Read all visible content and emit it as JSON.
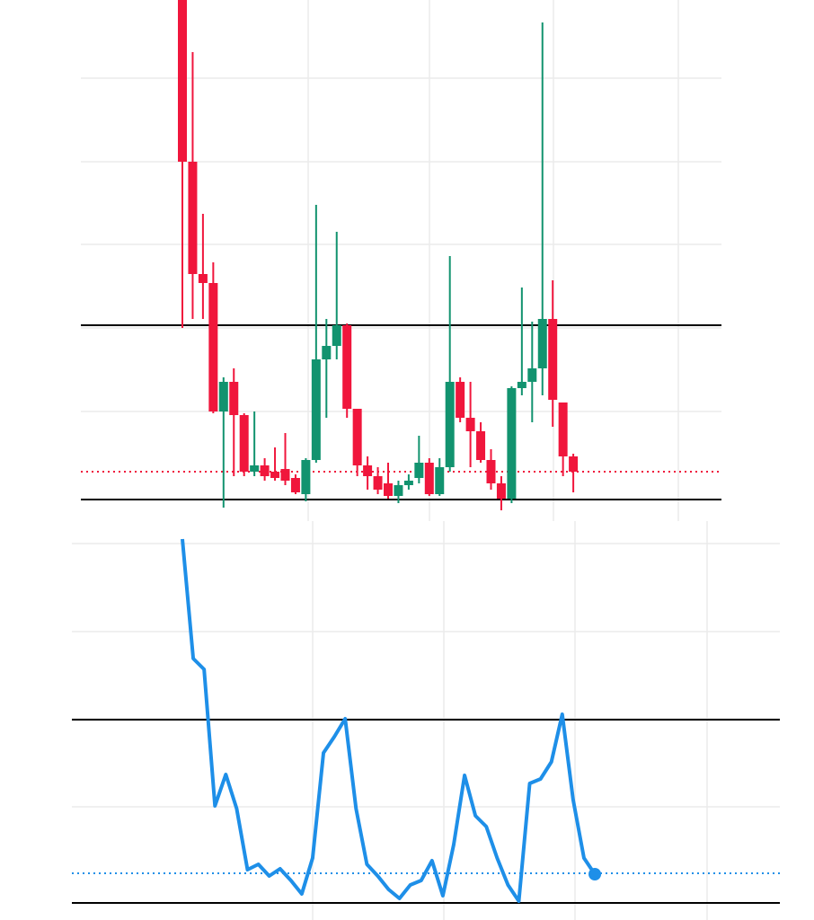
{
  "chart_data": [
    {
      "type": "candlestick",
      "categories": [
        null,
        null,
        null,
        null,
        null,
        null,
        null,
        null,
        null,
        null,
        null,
        null,
        null,
        null,
        null,
        null,
        null,
        null,
        null,
        null,
        null,
        null,
        null,
        null,
        null,
        null,
        null,
        null,
        null,
        null,
        null,
        null,
        null,
        null,
        null,
        null,
        null,
        null,
        null
      ],
      "open": [
        580,
        400,
        275,
        265,
        122,
        155,
        118,
        55,
        62,
        55,
        58,
        48,
        30,
        68,
        180,
        195,
        218,
        125,
        62,
        50,
        42,
        28,
        40,
        48,
        65,
        30,
        60,
        155,
        115,
        100,
        68,
        42,
        25,
        148,
        155,
        170,
        225,
        132,
        72
      ],
      "high": [
        580,
        522,
        342,
        288,
        160,
        170,
        120,
        122,
        70,
        82,
        98,
        52,
        70,
        352,
        225,
        322,
        220,
        125,
        72,
        60,
        65,
        45,
        52,
        95,
        70,
        70,
        295,
        160,
        155,
        110,
        80,
        50,
        150,
        260,
        222,
        555,
        268,
        132,
        75
      ],
      "low": [
        215,
        225,
        225,
        120,
        15,
        50,
        50,
        50,
        45,
        45,
        40,
        30,
        22,
        65,
        115,
        180,
        115,
        50,
        35,
        30,
        25,
        20,
        35,
        42,
        28,
        28,
        55,
        110,
        60,
        65,
        35,
        12,
        20,
        140,
        110,
        140,
        105,
        50,
        32
      ],
      "close": [
        400,
        275,
        265,
        122,
        155,
        118,
        55,
        62,
        50,
        48,
        45,
        32,
        68,
        180,
        195,
        218,
        125,
        62,
        50,
        35,
        28,
        40,
        45,
        65,
        30,
        60,
        155,
        115,
        100,
        68,
        42,
        25,
        148,
        155,
        170,
        225,
        135,
        72,
        55
      ],
      "up_color": "#12936f",
      "down_color": "#f0163c",
      "ylim": [
        0,
        580
      ],
      "grid": true,
      "hlines": [
        {
          "value": 218,
          "color": "#000000",
          "style": "solid"
        },
        {
          "value": 24,
          "color": "#000000",
          "style": "solid"
        },
        {
          "value": 55,
          "color": "#f0163c",
          "style": "dotted"
        }
      ]
    },
    {
      "type": "line",
      "categories": [
        null,
        null,
        null,
        null,
        null,
        null,
        null,
        null,
        null,
        null,
        null,
        null,
        null,
        null,
        null,
        null,
        null,
        null,
        null,
        null,
        null,
        null,
        null,
        null,
        null,
        null,
        null,
        null,
        null,
        null,
        null,
        null,
        null,
        null,
        null,
        null,
        null,
        null,
        null
      ],
      "series": [
        {
          "color": "#1e8fe8",
          "values": [
            424,
            291,
            279,
            127,
            162,
            124,
            56,
            62,
            49,
            57,
            44,
            29,
            69,
            186,
            204,
            224,
            124,
            62,
            49,
            34,
            24,
            39,
            44,
            66,
            27,
            84,
            161,
            116,
            104,
            69,
            39,
            21,
            152,
            157,
            176,
            229,
            134,
            69,
            51
          ]
        }
      ],
      "ylim": [
        0,
        444
      ],
      "grid": true,
      "hlines": [
        {
          "value": 223,
          "color": "#000000",
          "style": "solid"
        },
        {
          "value": 19,
          "color": "#000000",
          "style": "solid"
        },
        {
          "value": 52,
          "color": "#1e8fe8",
          "style": "dotted"
        }
      ]
    }
  ]
}
